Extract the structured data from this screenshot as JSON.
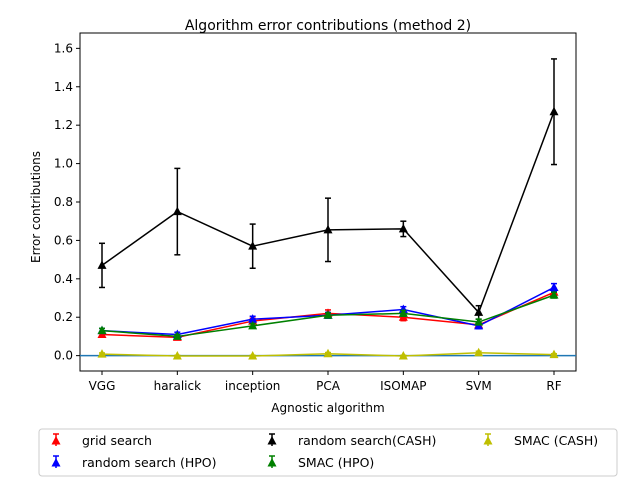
{
  "chart_data": {
    "type": "line",
    "title": "Algorithm error contributions (method 2)",
    "xlabel": "Agnostic algorithm",
    "ylabel": "Error contributions",
    "categories": [
      "VGG",
      "haralick",
      "inception",
      "PCA",
      "ISOMAP",
      "SVM",
      "RF"
    ],
    "ylim": [
      -0.08,
      1.68
    ],
    "yticks": [
      0.0,
      0.2,
      0.4,
      0.6,
      0.8,
      1.0,
      1.2,
      1.4,
      1.6
    ],
    "ytick_labels": [
      "0.0",
      "0.2",
      "0.4",
      "0.6",
      "0.8",
      "1.0",
      "1.2",
      "1.4",
      "1.6"
    ],
    "grid": false,
    "legend_position": "bottom",
    "reference_line": {
      "y": 0.0,
      "color": "#1f77b4"
    },
    "series": [
      {
        "name": "grid search",
        "color": "#ff0000",
        "values": [
          0.11,
          0.095,
          0.18,
          0.22,
          0.2,
          0.16,
          0.33
        ],
        "errors": [
          0.012,
          0.01,
          0.015,
          0.018,
          0.018,
          0.014,
          0.02
        ]
      },
      {
        "name": "random search (HPO)",
        "color": "#0000ff",
        "values": [
          0.13,
          0.11,
          0.19,
          0.21,
          0.24,
          0.155,
          0.355
        ],
        "errors": [
          0.012,
          0.012,
          0.015,
          0.015,
          0.015,
          0.015,
          0.02
        ]
      },
      {
        "name": "random search(CASH)",
        "color": "#000000",
        "values": [
          0.47,
          0.75,
          0.57,
          0.655,
          0.66,
          0.225,
          1.27
        ],
        "errors": [
          0.115,
          0.225,
          0.115,
          0.165,
          0.04,
          0.035,
          0.275
        ]
      },
      {
        "name": "SMAC (HPO)",
        "color": "#008000",
        "values": [
          0.13,
          0.1,
          0.155,
          0.21,
          0.22,
          0.175,
          0.315
        ],
        "errors": [
          0.012,
          0.01,
          0.012,
          0.012,
          0.015,
          0.015,
          0.015
        ]
      },
      {
        "name": "SMAC (CASH)",
        "color": "#bfbf00",
        "values": [
          0.008,
          -0.002,
          -0.002,
          0.01,
          -0.002,
          0.015,
          0.005
        ],
        "errors": [
          0.006,
          0.004,
          0.004,
          0.006,
          0.004,
          0.008,
          0.005
        ]
      }
    ]
  }
}
